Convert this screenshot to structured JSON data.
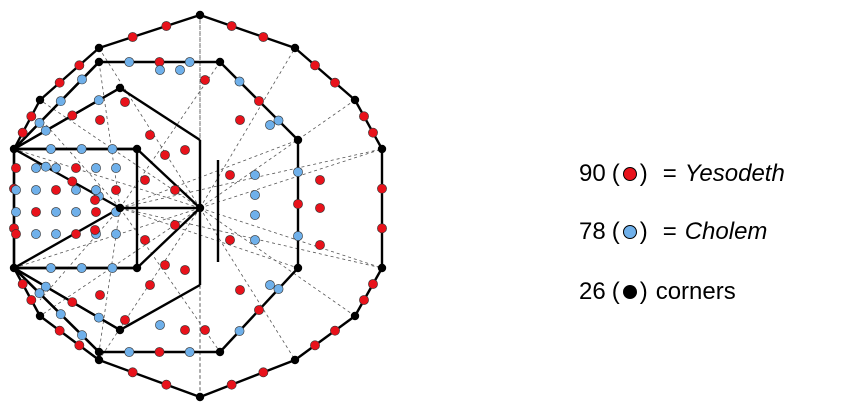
{
  "colors": {
    "yesodeth": "#e8121b",
    "cholem": "#6fb0ea",
    "corner": "#000000",
    "solid_edge": "#000000",
    "dashed_edge": "#555555"
  },
  "legend": [
    {
      "count": "90",
      "swatch": "yesodeth",
      "equals": "=",
      "name": "Yesodeth"
    },
    {
      "count": "78",
      "swatch": "cholem",
      "equals": "=",
      "name": "Cholem"
    },
    {
      "count": "26",
      "swatch": "corner",
      "name": "corners"
    }
  ],
  "diagram": {
    "counts": {
      "yesodeth": 90,
      "cholem": 78,
      "corners": 26
    }
  }
}
